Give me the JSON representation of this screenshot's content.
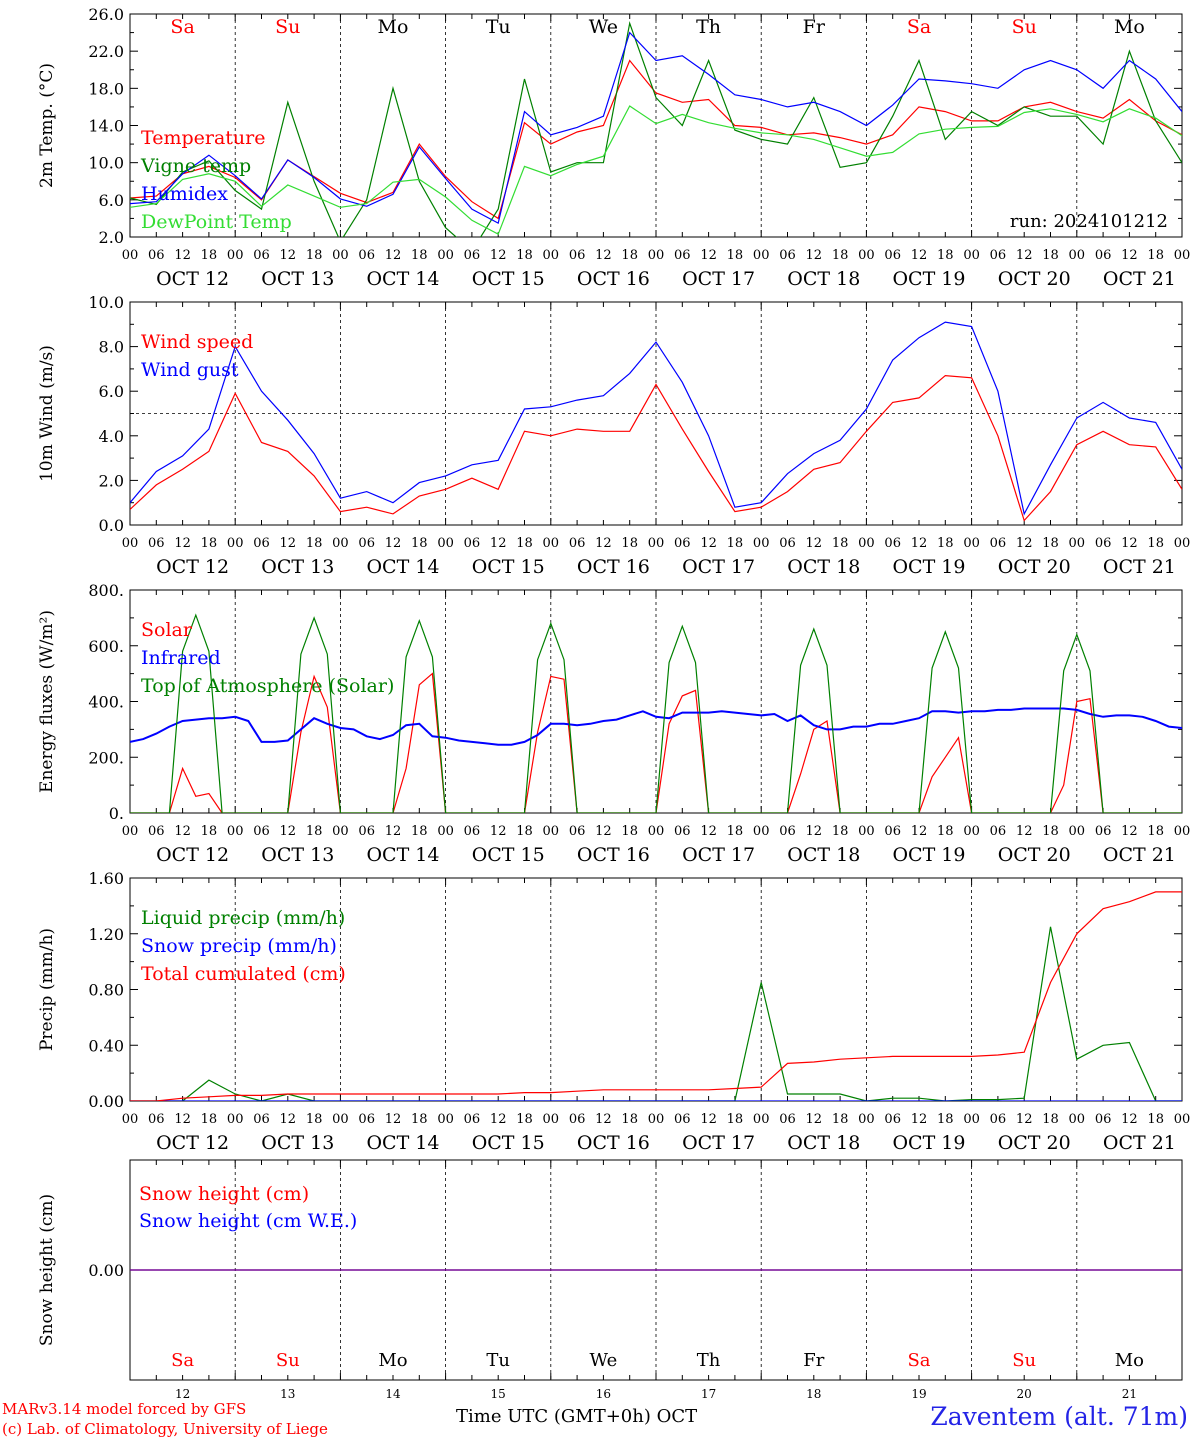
{
  "run_label": "run: 2024101212",
  "footer": {
    "credit_line1": "MARv3.14 model forced by GFS",
    "credit_line2": "(c) Lab. of Climatology, University of Liege",
    "location": "Zaventem (alt. 71m)",
    "time_axis_title": "Time UTC (GMT+0h)",
    "month": "OCT"
  },
  "colors": {
    "red": "#ff0000",
    "green": "#008000",
    "blue": "#0000ff",
    "lightgreen": "#33dd33",
    "purple": "#800080",
    "weekend": "#ff0000",
    "weekday": "#000000"
  },
  "chart_data": [
    {
      "type": "line",
      "ylabel": "2m Temp. (°C)",
      "ylim": [
        2,
        26
      ],
      "yticks": [
        "2.0",
        "6.0",
        "10.0",
        "14.0",
        "18.0",
        "22.0",
        "26.0"
      ],
      "hour_ticks": [
        "00",
        "06",
        "12",
        "18"
      ],
      "days": [
        {
          "abbr": "Sa",
          "date": "OCT 12",
          "weekend": true
        },
        {
          "abbr": "Su",
          "date": "OCT 13",
          "weekend": true
        },
        {
          "abbr": "Mo",
          "date": "OCT 14",
          "weekend": false
        },
        {
          "abbr": "Tu",
          "date": "OCT 15",
          "weekend": false
        },
        {
          "abbr": "We",
          "date": "OCT 16",
          "weekend": false
        },
        {
          "abbr": "Th",
          "date": "OCT 17",
          "weekend": false
        },
        {
          "abbr": "Fr",
          "date": "OCT 18",
          "weekend": false
        },
        {
          "abbr": "Sa",
          "date": "OCT 19",
          "weekend": true
        },
        {
          "abbr": "Su",
          "date": "OCT 20",
          "weekend": true
        },
        {
          "abbr": "Mo",
          "date": "OCT 21",
          "weekend": false
        }
      ],
      "x_hours": [
        0,
        6,
        12,
        18,
        24,
        30,
        36,
        42,
        48,
        54,
        60,
        66,
        72,
        78,
        84,
        90,
        96,
        102,
        108,
        114,
        120,
        126,
        132,
        138,
        144,
        150,
        156,
        162,
        168,
        174,
        180,
        186,
        192,
        198,
        204,
        210,
        216,
        222,
        228,
        234,
        240
      ],
      "series": [
        {
          "name": "Temperature",
          "color": "#ff0000",
          "values": [
            6.2,
            6.4,
            8.8,
            9.6,
            8.4,
            6.0,
            10.3,
            8.5,
            6.7,
            5.7,
            6.8,
            12.0,
            8.5,
            5.8,
            4.0,
            14.3,
            12.0,
            13.3,
            14.0,
            21.0,
            17.5,
            16.5,
            16.8,
            14.0,
            13.8,
            13.0,
            13.2,
            12.7,
            12.0,
            13.0,
            16.0,
            15.5,
            14.5,
            14.5,
            16.0,
            16.5,
            15.5,
            14.8,
            16.8,
            14.5,
            13.0
          ]
        },
        {
          "name": "Vigne temp",
          "color": "#008000",
          "values": [
            6.2,
            5.5,
            9.0,
            10.2,
            7.0,
            5.0,
            16.5,
            8.0,
            1.5,
            6.0,
            18.0,
            8.0,
            3.0,
            0.5,
            5.0,
            19.0,
            9.0,
            10.0,
            10.0,
            25.0,
            17.0,
            14.0,
            21.0,
            13.5,
            12.5,
            12.0,
            17.0,
            9.5,
            10.0,
            15.0,
            21.0,
            12.5,
            15.5,
            14.0,
            16.0,
            15.0,
            15.0,
            12.0,
            22.0,
            14.5,
            10.0
          ]
        },
        {
          "name": "Humidex",
          "color": "#0000ff",
          "values": [
            5.6,
            5.8,
            8.8,
            10.8,
            8.6,
            6.1,
            10.3,
            8.4,
            6.1,
            5.3,
            6.6,
            11.7,
            8.3,
            5.0,
            3.5,
            15.5,
            13.0,
            13.8,
            15.0,
            24.0,
            21.0,
            21.5,
            19.5,
            17.3,
            16.8,
            16.0,
            16.5,
            15.5,
            14.0,
            16.2,
            19.0,
            18.8,
            18.5,
            18.0,
            20.0,
            21.0,
            20.0,
            18.0,
            21.0,
            19.0,
            15.5
          ]
        },
        {
          "name": "DewPoint Temp",
          "color": "#33dd33",
          "values": [
            5.2,
            5.6,
            8.2,
            8.8,
            8.0,
            5.3,
            7.6,
            6.4,
            5.2,
            5.6,
            7.9,
            8.2,
            6.3,
            3.8,
            2.3,
            9.6,
            8.6,
            9.8,
            10.7,
            16.1,
            14.2,
            15.2,
            14.3,
            13.7,
            13.2,
            13.0,
            12.5,
            11.6,
            10.7,
            11.1,
            13.1,
            13.6,
            13.8,
            13.9,
            15.4,
            15.8,
            15.2,
            14.4,
            15.8,
            14.8,
            12.9
          ]
        }
      ]
    },
    {
      "type": "line",
      "ylabel": "10m Wind (m/s)",
      "ylim": [
        0,
        10
      ],
      "yticks": [
        "0.0",
        "2.0",
        "4.0",
        "6.0",
        "8.0",
        "10.0"
      ],
      "reference_line": 5,
      "x_hours": [
        0,
        6,
        12,
        18,
        24,
        30,
        36,
        42,
        48,
        54,
        60,
        66,
        72,
        78,
        84,
        90,
        96,
        102,
        108,
        114,
        120,
        126,
        132,
        138,
        144,
        150,
        156,
        162,
        168,
        174,
        180,
        186,
        192,
        198,
        204,
        210,
        216,
        222,
        228,
        234,
        240
      ],
      "series": [
        {
          "name": "Wind speed",
          "color": "#ff0000",
          "values": [
            0.7,
            1.8,
            2.5,
            3.3,
            5.9,
            3.7,
            3.3,
            2.2,
            0.6,
            0.8,
            0.5,
            1.3,
            1.6,
            2.1,
            1.6,
            4.2,
            4.0,
            4.3,
            4.2,
            4.2,
            6.3,
            4.3,
            2.4,
            0.6,
            0.8,
            1.5,
            2.5,
            2.8,
            4.2,
            5.5,
            5.7,
            6.7,
            6.6,
            4.0,
            0.2,
            1.5,
            3.6,
            4.2,
            3.6,
            3.5,
            1.6
          ]
        },
        {
          "name": "Wind gust",
          "color": "#0000ff",
          "values": [
            1.0,
            2.4,
            3.1,
            4.3,
            8.0,
            6.0,
            4.7,
            3.2,
            1.2,
            1.5,
            1.0,
            1.9,
            2.2,
            2.7,
            2.9,
            5.2,
            5.3,
            5.6,
            5.8,
            6.8,
            8.2,
            6.4,
            4.0,
            0.8,
            1.0,
            2.3,
            3.2,
            3.8,
            5.2,
            7.4,
            8.4,
            9.1,
            8.9,
            6.0,
            0.5,
            2.7,
            4.8,
            5.5,
            4.8,
            4.6,
            2.5
          ]
        }
      ]
    },
    {
      "type": "line",
      "ylabel": "Energy fluxes (W/m²)",
      "ylim": [
        0,
        800
      ],
      "yticks": [
        "0.",
        "200.",
        "400.",
        "600.",
        "800."
      ],
      "x_hours": [
        0,
        3,
        6,
        9,
        12,
        15,
        18,
        21,
        24,
        27,
        30,
        33,
        36,
        39,
        42,
        45,
        48,
        51,
        54,
        57,
        60,
        63,
        66,
        69,
        72,
        75,
        78,
        81,
        84,
        87,
        90,
        93,
        96,
        99,
        102,
        105,
        108,
        111,
        114,
        117,
        120,
        123,
        126,
        129,
        132,
        135,
        138,
        141,
        144,
        147,
        150,
        153,
        156,
        159,
        162,
        165,
        168,
        171,
        174,
        177,
        180,
        183,
        186,
        189,
        192,
        195,
        198,
        201,
        204,
        207,
        210,
        213,
        216,
        219,
        222,
        225,
        228,
        231,
        234,
        237,
        240
      ],
      "series": [
        {
          "name": "Solar",
          "color": "#ff0000",
          "values": [
            0,
            0,
            0,
            0,
            160,
            60,
            70,
            0,
            0,
            0,
            0,
            0,
            0,
            290,
            490,
            380,
            0,
            0,
            0,
            0,
            0,
            160,
            460,
            500,
            0,
            0,
            0,
            0,
            0,
            0,
            0,
            290,
            490,
            480,
            0,
            0,
            0,
            0,
            0,
            0,
            0,
            320,
            420,
            440,
            0,
            0,
            0,
            0,
            0,
            0,
            0,
            140,
            300,
            330,
            0,
            0,
            0,
            0,
            0,
            0,
            0,
            130,
            200,
            270,
            0,
            0,
            0,
            0,
            0,
            0,
            0,
            100,
            400,
            410,
            0,
            0,
            0,
            0,
            0,
            0,
            0
          ]
        },
        {
          "name": "Infrared",
          "color": "#0000ff",
          "values": [
            255,
            265,
            285,
            310,
            330,
            335,
            340,
            340,
            345,
            330,
            255,
            255,
            260,
            300,
            340,
            320,
            305,
            300,
            275,
            265,
            280,
            315,
            320,
            275,
            270,
            260,
            255,
            250,
            245,
            245,
            255,
            280,
            320,
            320,
            315,
            320,
            330,
            335,
            350,
            365,
            345,
            340,
            360,
            360,
            360,
            365,
            360,
            355,
            350,
            355,
            330,
            350,
            315,
            300,
            300,
            310,
            310,
            320,
            320,
            330,
            340,
            365,
            365,
            360,
            365,
            365,
            370,
            370,
            375,
            375,
            375,
            375,
            370,
            355,
            345,
            350,
            350,
            345,
            330,
            310,
            305
          ]
        },
        {
          "name": "Top of Atmosphere (Solar)",
          "color": "#008000",
          "values": [
            0,
            0,
            0,
            0,
            580,
            710,
            580,
            0,
            0,
            0,
            0,
            0,
            0,
            570,
            700,
            570,
            0,
            0,
            0,
            0,
            0,
            560,
            690,
            560,
            0,
            0,
            0,
            0,
            0,
            0,
            0,
            550,
            680,
            550,
            0,
            0,
            0,
            0,
            0,
            0,
            0,
            540,
            670,
            540,
            0,
            0,
            0,
            0,
            0,
            0,
            0,
            530,
            660,
            530,
            0,
            0,
            0,
            0,
            0,
            0,
            0,
            520,
            650,
            520,
            0,
            0,
            0,
            0,
            0,
            0,
            0,
            510,
            640,
            510,
            0,
            0,
            0,
            0,
            0,
            0,
            0
          ]
        }
      ]
    },
    {
      "type": "line",
      "ylabel": "Precip (mm/h)",
      "ylim": [
        0,
        1.6
      ],
      "yticks": [
        "0.00",
        "0.40",
        "0.80",
        "1.20",
        "1.60"
      ],
      "x_hours": [
        0,
        6,
        12,
        18,
        24,
        30,
        36,
        42,
        48,
        54,
        60,
        66,
        72,
        78,
        84,
        90,
        96,
        102,
        108,
        114,
        120,
        126,
        132,
        138,
        144,
        150,
        156,
        162,
        168,
        174,
        180,
        186,
        192,
        198,
        204,
        210,
        216,
        222,
        228,
        234,
        240
      ],
      "series": [
        {
          "name": "Liquid precip (mm/h)",
          "color": "#008000",
          "values": [
            0,
            0,
            0,
            0.15,
            0.05,
            0,
            0.05,
            0,
            0,
            0,
            0,
            0,
            0,
            0,
            0,
            0,
            0,
            0,
            0,
            0,
            0,
            0,
            0,
            0,
            0.85,
            0.05,
            0.05,
            0.05,
            0,
            0.02,
            0.02,
            0,
            0.01,
            0.01,
            0.02,
            1.25,
            0.3,
            0.4,
            0.42,
            0,
            0
          ]
        },
        {
          "name": "Snow precip (mm/h)",
          "color": "#0000ff",
          "values": [
            0,
            0,
            0,
            0,
            0,
            0,
            0,
            0,
            0,
            0,
            0,
            0,
            0,
            0,
            0,
            0,
            0,
            0,
            0,
            0,
            0,
            0,
            0,
            0,
            0,
            0,
            0,
            0,
            0,
            0,
            0,
            0,
            0,
            0,
            0,
            0,
            0,
            0,
            0,
            0,
            0
          ]
        },
        {
          "name": "Total cumulated (cm)",
          "color": "#ff0000",
          "values": [
            0,
            0,
            0.02,
            0.03,
            0.04,
            0.04,
            0.05,
            0.05,
            0.05,
            0.05,
            0.05,
            0.05,
            0.05,
            0.05,
            0.05,
            0.06,
            0.06,
            0.07,
            0.08,
            0.08,
            0.08,
            0.08,
            0.08,
            0.09,
            0.1,
            0.27,
            0.28,
            0.3,
            0.31,
            0.32,
            0.32,
            0.32,
            0.32,
            0.33,
            0.35,
            0.85,
            1.2,
            1.38,
            1.43,
            1.5,
            1.5
          ]
        }
      ]
    },
    {
      "type": "line",
      "ylabel": "Snow height (cm)",
      "yticks": [
        "0.00"
      ],
      "series": [
        {
          "name": "Snow height (cm)",
          "color": "#ff0000",
          "values": [
            0,
            0
          ]
        },
        {
          "name": "Snow height (cm W.E.)",
          "color": "#0000ff",
          "values": [
            0,
            0
          ]
        }
      ],
      "day_numbers": [
        "12",
        "13",
        "14",
        "15",
        "16",
        "17",
        "18",
        "19",
        "20",
        "21"
      ]
    }
  ]
}
